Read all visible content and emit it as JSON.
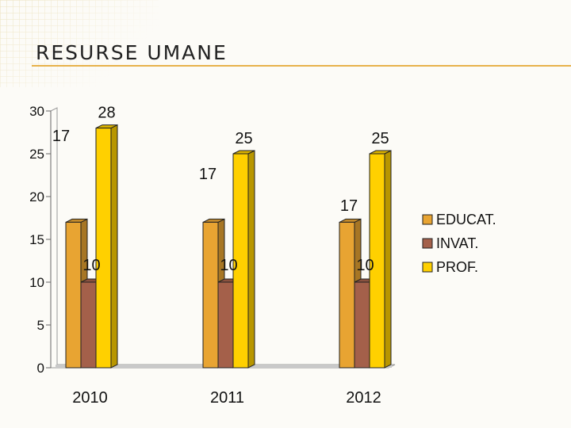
{
  "slide": {
    "title": "RESURSE UMANE"
  },
  "chart_data": {
    "type": "bar",
    "style": "3d-clustered-column",
    "categories": [
      "2010",
      "2011",
      "2012"
    ],
    "series": [
      {
        "name": "EDUCAT.",
        "values": [
          17,
          17,
          17
        ],
        "color": "#e8a432"
      },
      {
        "name": "INVAT.",
        "values": [
          10,
          10,
          10
        ],
        "color": "#a4604a"
      },
      {
        "name": "PROF.",
        "values": [
          28,
          25,
          25
        ],
        "color": "#ffd000"
      }
    ],
    "ylim": [
      0,
      30
    ],
    "yticks": [
      0,
      5,
      10,
      15,
      20,
      25,
      30
    ],
    "gridlines": false,
    "legend": "right",
    "data_labels": true
  }
}
